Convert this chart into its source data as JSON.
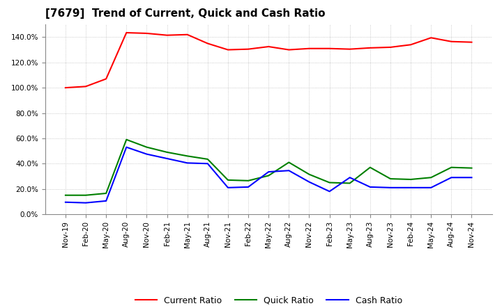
{
  "title": "[7679]  Trend of Current, Quick and Cash Ratio",
  "x_labels": [
    "Nov-19",
    "Feb-20",
    "May-20",
    "Aug-20",
    "Nov-20",
    "Feb-21",
    "May-21",
    "Aug-21",
    "Nov-21",
    "Feb-22",
    "May-22",
    "Aug-22",
    "Nov-22",
    "Feb-23",
    "May-23",
    "Aug-23",
    "Nov-23",
    "Feb-24",
    "May-24",
    "Aug-24",
    "Nov-24"
  ],
  "current_ratio": [
    100.0,
    101.0,
    107.0,
    143.5,
    143.0,
    141.5,
    142.0,
    135.0,
    130.0,
    130.5,
    132.5,
    130.0,
    131.0,
    131.0,
    130.5,
    131.5,
    132.0,
    134.0,
    139.5,
    136.5,
    136.0
  ],
  "quick_ratio": [
    15.0,
    15.0,
    16.5,
    59.0,
    53.0,
    49.0,
    46.0,
    43.5,
    27.0,
    26.5,
    30.5,
    41.0,
    31.5,
    25.0,
    24.5,
    37.0,
    28.0,
    27.5,
    29.0,
    37.0,
    36.5
  ],
  "cash_ratio": [
    9.5,
    9.0,
    10.5,
    53.0,
    47.5,
    44.0,
    40.5,
    40.0,
    21.0,
    21.5,
    33.5,
    34.5,
    25.5,
    18.0,
    29.0,
    21.5,
    21.0,
    21.0,
    21.0,
    29.0,
    29.0
  ],
  "current_color": "#ff0000",
  "quick_color": "#008000",
  "cash_color": "#0000ff",
  "ylim": [
    0,
    150
  ],
  "ytick_vals": [
    0,
    20,
    40,
    60,
    80,
    100,
    120,
    140
  ],
  "background_color": "#ffffff",
  "grid_color": "#bbbbbb",
  "title_fontsize": 11,
  "tick_fontsize": 7.5,
  "legend_fontsize": 9
}
